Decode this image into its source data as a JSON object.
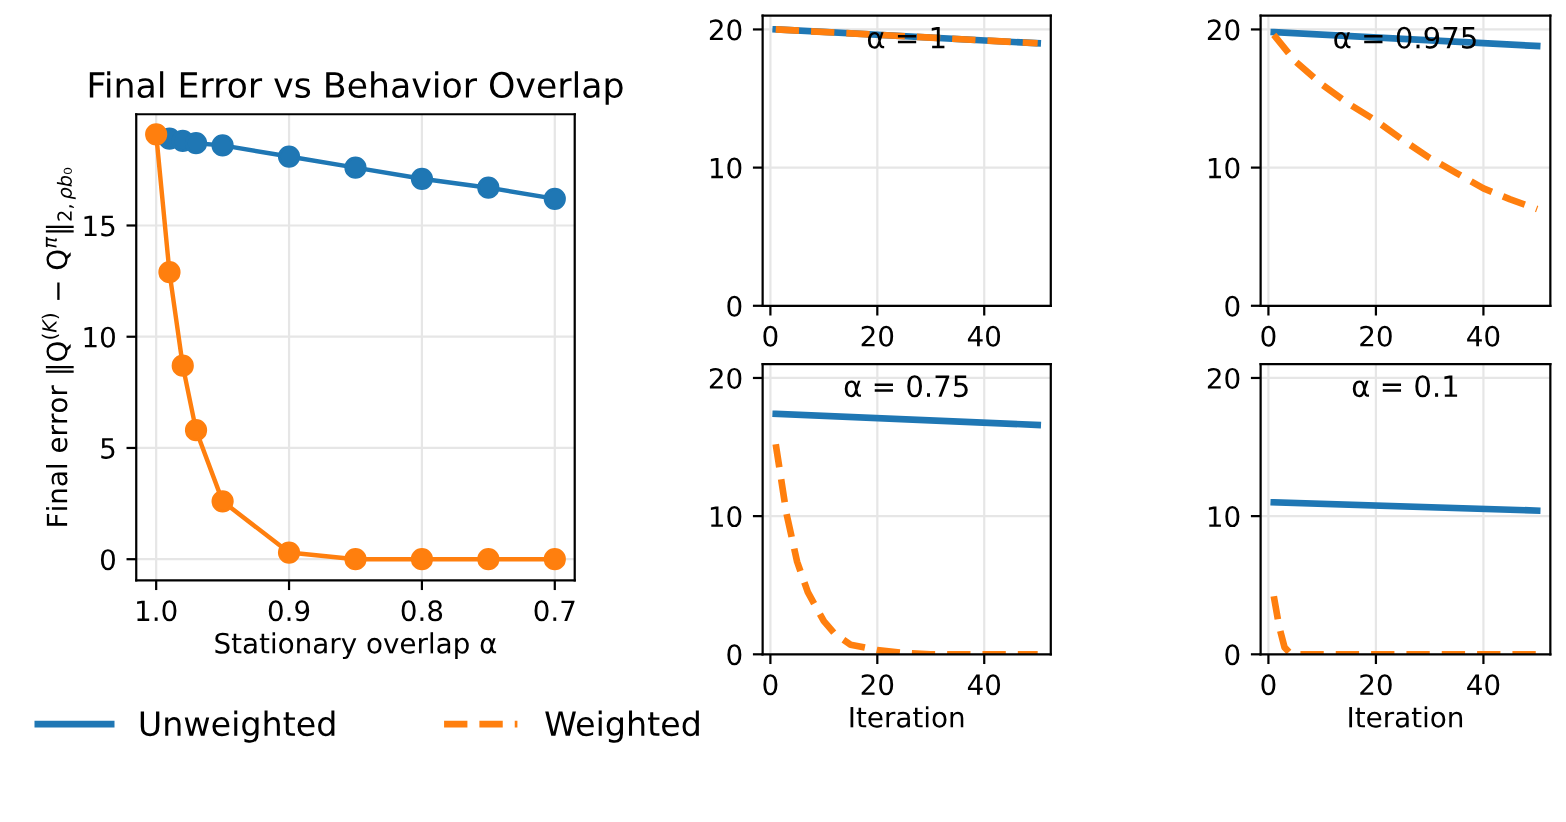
{
  "chart_data": [
    {
      "type": "line",
      "title": "Final Error vs Behavior Overlap",
      "xlabel": "Stationary overlap α",
      "ylabel": "Final error ‖Q$^{(K)}$ − Q$^{π}$‖$_{2,ρb₀}$",
      "x": [
        1.0,
        0.99,
        0.98,
        0.97,
        0.95,
        0.9,
        0.85,
        0.8,
        0.75,
        0.7
      ],
      "series": [
        {
          "color": "#1f77b4",
          "values": [
            null,
            18.9,
            18.8,
            18.7,
            18.6,
            18.1,
            17.6,
            17.1,
            16.7,
            16.2
          ]
        },
        {
          "color": "#ff7f0e",
          "values": [
            19.1,
            12.9,
            8.7,
            5.8,
            2.6,
            0.3,
            0.0,
            0.0,
            0.0,
            0.0
          ]
        }
      ],
      "marker": "circle",
      "line_style": "solid",
      "grid": true,
      "xlim": [
        1.015,
        0.685
      ],
      "xticks": [
        {
          "value": 1.0,
          "label": "1.0"
        },
        0.9,
        0.8,
        0.7
      ],
      "ylim": [
        -0.95,
        20.0
      ],
      "yticks": [
        0,
        5,
        10,
        15
      ]
    },
    {
      "type": "line",
      "title": "α = 1",
      "grid": true,
      "legend": "bottom",
      "series": [
        {
          "name": "Unweighted",
          "color": "#1f77b4",
          "line_style": "solid",
          "x": [
            1,
            50
          ],
          "values": [
            20.0,
            19.0
          ]
        },
        {
          "name": "Weighted",
          "color": "#ff7f0e",
          "line_style": "dashed",
          "x": [
            1,
            50
          ],
          "values": [
            20.0,
            19.0
          ]
        }
      ],
      "xlim": [
        -1.45,
        52.45
      ],
      "xticks": [
        0,
        20,
        40
      ],
      "ylim": [
        0,
        21
      ],
      "yticks": [
        0,
        10,
        20
      ]
    },
    {
      "type": "line",
      "title": "α = 0.975",
      "grid": true,
      "series": [
        {
          "color": "#1f77b4",
          "line_style": "solid",
          "x": [
            1,
            50
          ],
          "values": [
            19.8,
            18.8
          ]
        },
        {
          "color": "#ff7f0e",
          "line_style": "dashed",
          "x": [
            1,
            5,
            10,
            15,
            20,
            25,
            30,
            35,
            40,
            45,
            50
          ],
          "values": [
            19.6,
            17.7,
            16.0,
            14.6,
            13.4,
            12.0,
            10.7,
            9.6,
            8.5,
            7.7,
            7.0
          ]
        }
      ],
      "xlim": [
        -1.45,
        52.45
      ],
      "xticks": [
        0,
        20,
        40
      ],
      "ylim": [
        0,
        21
      ],
      "yticks": [
        0,
        10,
        20
      ]
    },
    {
      "type": "line",
      "title": "α = 0.75",
      "xlabel": "Iteration",
      "grid": true,
      "series": [
        {
          "color": "#1f77b4",
          "line_style": "solid",
          "x": [
            1,
            50
          ],
          "values": [
            17.4,
            16.6
          ]
        },
        {
          "color": "#ff7f0e",
          "line_style": "dashed",
          "x": [
            1,
            3,
            5,
            7,
            10,
            12,
            15,
            20,
            25,
            30,
            40,
            50
          ],
          "values": [
            15.2,
            10.2,
            6.7,
            4.5,
            2.4,
            1.5,
            0.7,
            0.3,
            0.1,
            0.0,
            0.0,
            0.0
          ]
        }
      ],
      "xlim": [
        -1.45,
        52.45
      ],
      "xticks": [
        0,
        20,
        40
      ],
      "ylim": [
        0,
        21
      ],
      "yticks": [
        0,
        10,
        20
      ]
    },
    {
      "type": "line",
      "title": "α = 0.1",
      "xlabel": "Iteration",
      "grid": true,
      "series": [
        {
          "color": "#1f77b4",
          "line_style": "solid",
          "x": [
            1,
            50
          ],
          "values": [
            11.0,
            10.4
          ]
        },
        {
          "color": "#ff7f0e",
          "line_style": "dashed",
          "x": [
            1,
            2,
            3,
            4,
            5,
            10,
            20,
            30,
            40,
            50
          ],
          "values": [
            4.2,
            2.0,
            0.5,
            0.1,
            0.0,
            0.0,
            0.0,
            0.0,
            0.0,
            0.0
          ]
        }
      ],
      "xlim": [
        -1.45,
        52.45
      ],
      "xticks": [
        0,
        20,
        40
      ],
      "ylim": [
        0,
        21
      ],
      "yticks": [
        0,
        10,
        20
      ]
    }
  ]
}
